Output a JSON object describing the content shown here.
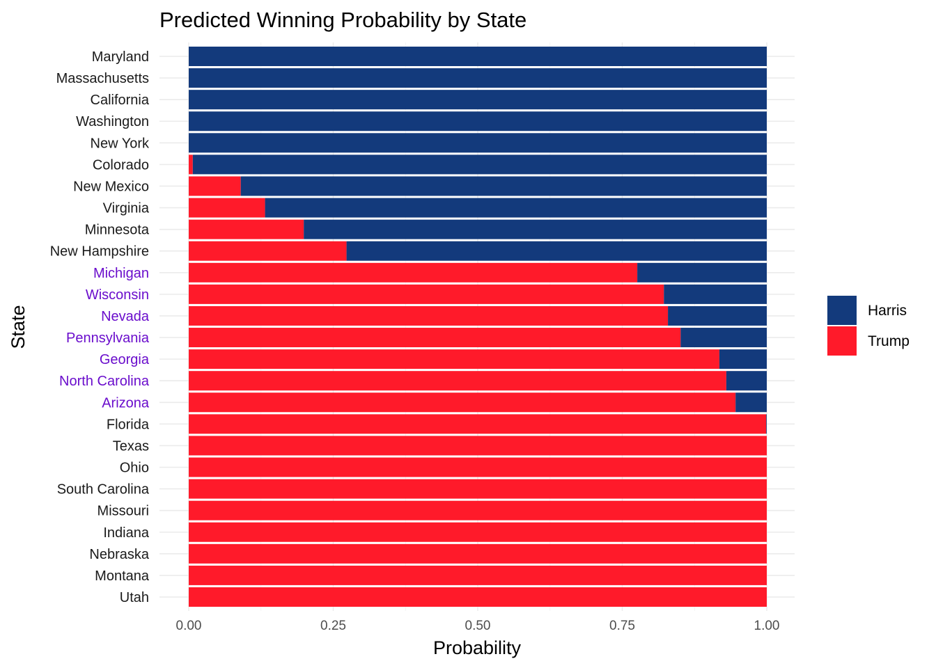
{
  "chart_data": {
    "type": "bar",
    "orientation": "horizontal",
    "stacked": true,
    "title": "Predicted Winning Probability by State",
    "xlabel": "Probability",
    "ylabel": "State",
    "xlim": [
      0,
      1
    ],
    "x_ticks": [
      "0.00",
      "0.25",
      "0.50",
      "0.75",
      "1.00"
    ],
    "x_tick_values": [
      0,
      0.25,
      0.5,
      0.75,
      1.0
    ],
    "grid": true,
    "legend_position": "right",
    "colors": {
      "Harris": "#133A7C",
      "Trump": "#FF1A2A",
      "swing_label": "#6A0DCC",
      "default_label": "#1a1a1a",
      "grid": "#ebebeb"
    },
    "legend": [
      "Harris",
      "Trump"
    ],
    "categories": [
      "Maryland",
      "Massachusetts",
      "California",
      "Washington",
      "New York",
      "Colorado",
      "New Mexico",
      "Virginia",
      "Minnesota",
      "New Hampshire",
      "Michigan",
      "Wisconsin",
      "Nevada",
      "Pennsylvania",
      "Georgia",
      "North Carolina",
      "Arizona",
      "Florida",
      "Texas",
      "Ohio",
      "South Carolina",
      "Missouri",
      "Indiana",
      "Nebraska",
      "Montana",
      "Utah"
    ],
    "swing_states": [
      "Michigan",
      "Wisconsin",
      "Nevada",
      "Pennsylvania",
      "Georgia",
      "North Carolina",
      "Arizona"
    ],
    "series": [
      {
        "name": "Trump",
        "values": [
          0.0,
          0.0,
          0.0,
          0.0,
          0.0,
          0.007,
          0.09,
          0.132,
          0.199,
          0.273,
          0.776,
          0.822,
          0.829,
          0.851,
          0.918,
          0.93,
          0.946,
          0.999,
          1.0,
          1.0,
          1.0,
          1.0,
          1.0,
          1.0,
          1.0,
          1.0
        ]
      },
      {
        "name": "Harris",
        "values": [
          1.0,
          1.0,
          1.0,
          1.0,
          1.0,
          0.993,
          0.91,
          0.868,
          0.801,
          0.727,
          0.224,
          0.178,
          0.171,
          0.149,
          0.082,
          0.07,
          0.054,
          0.001,
          0.0,
          0.0,
          0.0,
          0.0,
          0.0,
          0.0,
          0.0,
          0.0
        ]
      }
    ]
  }
}
